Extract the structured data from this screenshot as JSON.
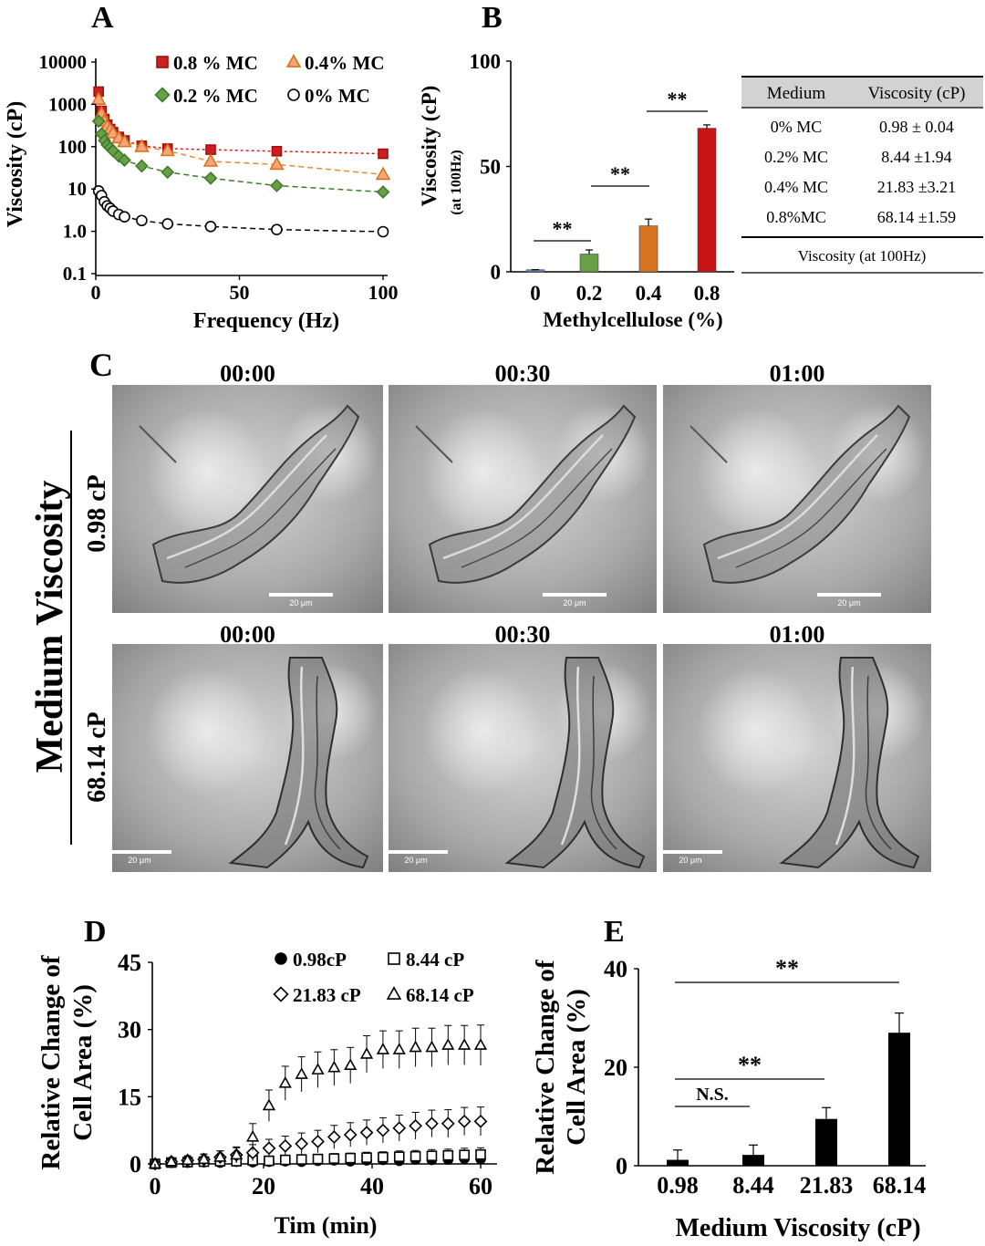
{
  "panel_labels": {
    "a": "A",
    "b": "B",
    "c": "C",
    "d": "D",
    "e": "E"
  },
  "chart_data": [
    {
      "id": "A",
      "type": "scatter",
      "xlabel": "Frequency (Hz)",
      "ylabel": "Viscosity (cP)",
      "xlim": [
        0,
        100
      ],
      "ylim": [
        0.1,
        10000
      ],
      "yscale": "log",
      "xticks": [
        "0",
        "50",
        "100"
      ],
      "yticks": [
        "0.1",
        "1.0",
        "10",
        "100",
        "1000",
        "10000"
      ],
      "legend": "top-right",
      "series": [
        {
          "name": "0.8 % MC",
          "color": "#cc1f1f",
          "marker": "square",
          "x": [
            1,
            2,
            3,
            4,
            5,
            6,
            8,
            10,
            16,
            25,
            40,
            63,
            100
          ],
          "y": [
            2000,
            700,
            450,
            330,
            260,
            220,
            170,
            140,
            105,
            90,
            85,
            78,
            68
          ]
        },
        {
          "name": "0.4% MC",
          "color": "#f4a57a",
          "marker": "triangle",
          "x": [
            1,
            2,
            3,
            4,
            5,
            6,
            8,
            10,
            16,
            25,
            40,
            63,
            100
          ],
          "y": [
            1300,
            600,
            400,
            300,
            250,
            210,
            160,
            130,
            100,
            80,
            45,
            38,
            22
          ]
        },
        {
          "name": "0.2 % MC",
          "color": "#5a9a3c",
          "marker": "diamond",
          "x": [
            1,
            2,
            3,
            4,
            5,
            6,
            8,
            10,
            16,
            25,
            40,
            63,
            100
          ],
          "y": [
            400,
            200,
            140,
            110,
            95,
            80,
            60,
            48,
            35,
            25,
            18,
            12,
            8.5
          ]
        },
        {
          "name": "0% MC",
          "color": "#000000",
          "marker": "circle",
          "x": [
            1,
            2,
            3,
            4,
            5,
            6,
            8,
            10,
            16,
            25,
            40,
            63,
            100
          ],
          "y": [
            9,
            7,
            5,
            4,
            3.5,
            3,
            2.5,
            2.2,
            1.8,
            1.5,
            1.3,
            1.1,
            0.98
          ]
        }
      ]
    },
    {
      "id": "B",
      "type": "bar",
      "xlabel": "Methylcellulose (%)",
      "ylabel": "Viscosity (cP)",
      "ylabel_sub": "(at 100Hz)",
      "ylim": [
        0,
        100
      ],
      "yticks": [
        "0",
        "50",
        "100"
      ],
      "categories": [
        "0",
        "0.2",
        "0.4",
        "0.8"
      ],
      "values": [
        0.98,
        8.44,
        21.83,
        68.14
      ],
      "errors": [
        0.04,
        1.94,
        3.21,
        1.59
      ],
      "colors": [
        "#5e86c2",
        "#6aa045",
        "#d8741f",
        "#c81414"
      ],
      "significance": [
        {
          "from": 0,
          "to": 1,
          "label": "**"
        },
        {
          "from": 1,
          "to": 2,
          "label": "**"
        },
        {
          "from": 2,
          "to": 3,
          "label": "**"
        }
      ]
    },
    {
      "id": "B-table",
      "type": "table",
      "columns": [
        "Medium",
        "Viscosity (cP)"
      ],
      "rows": [
        [
          "0% MC",
          "0.98 ± 0.04"
        ],
        [
          "0.2% MC",
          "8.44 ±1.94"
        ],
        [
          "0.4% MC",
          "21.83 ±3.21"
        ],
        [
          "0.8%MC",
          "68.14 ±1.59"
        ]
      ],
      "caption": "Viscosity (at 100Hz)"
    },
    {
      "id": "D",
      "type": "scatter",
      "xlabel": "Tim (min)",
      "ylabel": [
        "Relative Change of",
        "Cell Area (%)"
      ],
      "xlim": [
        0,
        60
      ],
      "ylim": [
        0,
        45
      ],
      "xticks": [
        "0",
        "20",
        "40",
        "60"
      ],
      "yticks": [
        "0",
        "15",
        "30",
        "45"
      ],
      "legend": "top-right",
      "x": [
        0,
        3,
        6,
        9,
        12,
        15,
        18,
        21,
        24,
        27,
        30,
        33,
        36,
        39,
        42,
        45,
        48,
        51,
        54,
        57,
        60
      ],
      "series": [
        {
          "name": "0.98cP",
          "marker": "filled-circle",
          "y": [
            0,
            0.5,
            0.3,
            0.4,
            0.3,
            0.5,
            0.4,
            0.5,
            0.6,
            0.5,
            0.7,
            0.8,
            0.6,
            0.8,
            0.9,
            0.7,
            1.0,
            0.9,
            1.0,
            1.2,
            1.1
          ],
          "err": [
            0.4,
            0.6,
            0.6,
            0.6,
            0.6,
            0.6,
            0.6,
            0.6,
            0.6,
            0.6,
            0.7,
            0.7,
            0.7,
            0.7,
            0.8,
            0.8,
            0.8,
            0.8,
            0.9,
            0.9,
            0.9
          ]
        },
        {
          "name": "8.44 cP",
          "marker": "square",
          "y": [
            0,
            0.3,
            0.4,
            0.5,
            0.6,
            0.6,
            0.8,
            0.7,
            0.9,
            1.0,
            1.1,
            1.2,
            1.3,
            1.4,
            1.5,
            1.6,
            1.7,
            1.8,
            1.9,
            2.0,
            2.1
          ],
          "err": [
            0.4,
            0.6,
            0.6,
            0.7,
            0.7,
            0.8,
            0.8,
            0.9,
            0.9,
            1.0,
            1.0,
            1.1,
            1.1,
            1.2,
            1.2,
            1.3,
            1.3,
            1.4,
            1.4,
            1.5,
            1.5
          ]
        },
        {
          "name": "21.83 cP",
          "marker": "open-diamond",
          "y": [
            0,
            0.5,
            0.8,
            1.0,
            1.5,
            2.0,
            2.5,
            3.5,
            4.0,
            4.5,
            5.0,
            6.0,
            6.5,
            7.0,
            7.5,
            8.0,
            8.5,
            9.0,
            9.0,
            9.5,
            9.5
          ],
          "err": [
            0.5,
            0.8,
            1.0,
            1.2,
            1.4,
            1.6,
            1.8,
            2.0,
            2.2,
            2.4,
            2.5,
            2.6,
            2.7,
            2.8,
            2.8,
            2.9,
            3.0,
            3.0,
            3.1,
            3.1,
            3.2
          ]
        },
        {
          "name": "68.14 cP",
          "marker": "open-triangle",
          "y": [
            0,
            0.5,
            0.8,
            1.0,
            1.5,
            2.0,
            6.0,
            13.0,
            18.0,
            20.0,
            21.0,
            21.5,
            22.0,
            24.5,
            25.5,
            25.5,
            26.0,
            26.0,
            26.5,
            26.5,
            26.5
          ],
          "err": [
            0.5,
            0.8,
            1.0,
            1.2,
            1.4,
            1.8,
            3.0,
            3.5,
            3.8,
            3.9,
            4.0,
            4.0,
            4.0,
            4.1,
            4.2,
            4.2,
            4.3,
            4.3,
            4.4,
            4.4,
            4.5
          ]
        }
      ]
    },
    {
      "id": "E",
      "type": "bar",
      "xlabel": "Medium Viscosity (cP)",
      "ylabel": [
        "Relative Change of",
        "Cell Area (%)"
      ],
      "ylim": [
        0,
        40
      ],
      "yticks": [
        "0",
        "20",
        "40"
      ],
      "categories": [
        "0.98",
        "8.44",
        "21.83",
        "68.14"
      ],
      "values": [
        1.2,
        2.2,
        9.5,
        27.0
      ],
      "errors": [
        2.0,
        2.0,
        2.3,
        4.0
      ],
      "significance": [
        {
          "from": 0,
          "to": 1,
          "label": "N.S."
        },
        {
          "from": 0,
          "to": 2,
          "label": "**"
        },
        {
          "from": 0,
          "to": 3,
          "label": "**"
        }
      ]
    }
  ],
  "micrographs": {
    "row_title": "Medium Viscosity",
    "rows": [
      "0.98 cP",
      "68.14 cP"
    ],
    "timepoints": [
      [
        "00:00",
        "00:30",
        "01:00"
      ],
      [
        "00:00",
        "00:30",
        "01:00"
      ]
    ],
    "scale_bar": "20 μm"
  }
}
